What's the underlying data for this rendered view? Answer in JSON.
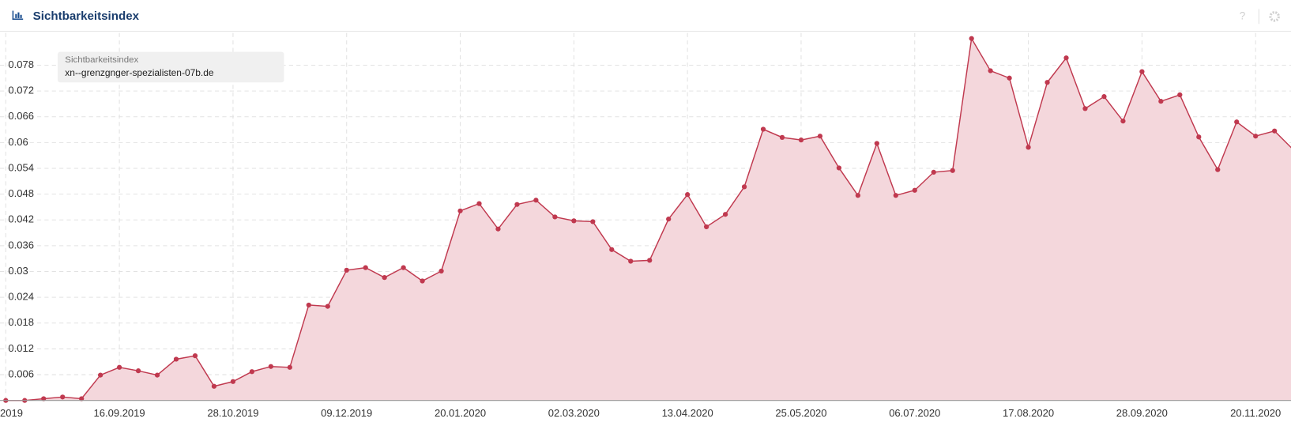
{
  "chart_data": {
    "type": "area",
    "title": "Sichtbarkeitsindex",
    "legend_title": "Sichtbarkeitsindex",
    "categories": [
      "2019",
      null,
      null,
      null,
      null,
      null,
      "16.09.2019",
      null,
      null,
      null,
      null,
      null,
      "28.10.2019",
      null,
      null,
      null,
      null,
      null,
      "09.12.2019",
      null,
      null,
      null,
      null,
      null,
      "20.01.2020",
      null,
      null,
      null,
      null,
      null,
      "02.03.2020",
      null,
      null,
      null,
      null,
      null,
      "13.04.2020",
      null,
      null,
      null,
      null,
      null,
      "25.05.2020",
      null,
      null,
      null,
      null,
      null,
      "06.07.2020",
      null,
      null,
      null,
      null,
      null,
      "17.08.2020",
      null,
      null,
      null,
      null,
      null,
      "28.09.2020",
      null,
      null,
      null,
      null,
      null,
      "20.11.2020",
      null,
      null
    ],
    "series": [
      {
        "name": "xn--grenzgnger-spezialisten-07b.de",
        "color": "#c0394f",
        "fill": "#f4d7dc",
        "values": [
          0,
          0,
          0.0004,
          0.0008,
          0.0004,
          0.0059,
          0.0077,
          0.0069,
          0.0059,
          0.0096,
          0.0104,
          0.0033,
          0.0044,
          0.0067,
          0.0079,
          0.0077,
          0.0222,
          0.0219,
          0.0303,
          0.0309,
          0.0286,
          0.0309,
          0.0278,
          0.0301,
          0.0441,
          0.0458,
          0.0399,
          0.0456,
          0.0466,
          0.0427,
          0.0418,
          0.0416,
          0.0351,
          0.0324,
          0.0326,
          0.0422,
          0.0479,
          0.0404,
          0.0433,
          0.0497,
          0.0631,
          0.0612,
          0.0606,
          0.0615,
          0.0541,
          0.0477,
          0.0598,
          0.0477,
          0.0489,
          0.0531,
          0.0535,
          0.0842,
          0.0767,
          0.075,
          0.0589,
          0.074,
          0.0797,
          0.0679,
          0.0707,
          0.065,
          0.0765,
          0.0696,
          0.0711,
          0.0613,
          0.0537,
          0.0648,
          0.0615,
          0.0627,
          0.0583
        ]
      }
    ],
    "ylim": [
      0,
      0.0855
    ],
    "yticks": [
      0.006,
      0.012,
      0.018,
      0.024,
      0.03,
      0.036,
      0.042,
      0.048,
      0.054,
      0.06,
      0.066,
      0.072,
      0.078
    ],
    "grid": true
  }
}
